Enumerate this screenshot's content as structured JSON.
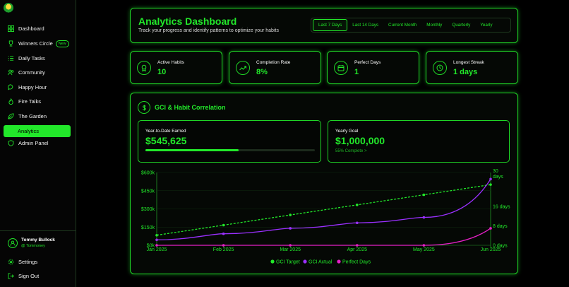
{
  "sidebar": {
    "items": [
      {
        "label": "Dashboard",
        "icon": "grid-icon"
      },
      {
        "label": "Winners Circle",
        "icon": "trophy-icon",
        "badge": "New"
      },
      {
        "label": "Daily Tasks",
        "icon": "list-icon"
      },
      {
        "label": "Community",
        "icon": "users-icon"
      },
      {
        "label": "Happy Hour",
        "icon": "chat-icon"
      },
      {
        "label": "Fire Talks",
        "icon": "flame-icon"
      },
      {
        "label": "The Garden",
        "icon": "leaf-icon"
      },
      {
        "label": "Analytics",
        "icon": "chart-icon",
        "active": true
      },
      {
        "label": "Admin Panel",
        "icon": "shield-icon"
      }
    ],
    "user": {
      "name": "Tommy Bullock",
      "handle": "@ Tommoney"
    },
    "settings_label": "Settings",
    "signout_label": "Sign Out"
  },
  "header": {
    "title": "Analytics Dashboard",
    "subtitle": "Track your progress and identify patterns to optimize your habits",
    "ranges": [
      "Last 7 Days",
      "Last 14 Days",
      "Current Month",
      "Monthly",
      "Quarterly",
      "Yearly"
    ],
    "active_range": "Last 7 Days"
  },
  "stats": [
    {
      "label": "Active Habits",
      "value": "10",
      "icon": "medal-icon"
    },
    {
      "label": "Completion Rate",
      "value": "8%",
      "icon": "trend-up-icon"
    },
    {
      "label": "Perfect Days",
      "value": "1",
      "icon": "calendar-icon"
    },
    {
      "label": "Longest Streak",
      "value": "1 days",
      "icon": "clock-icon"
    }
  ],
  "correlation": {
    "title": "GCI & Habit Correlation",
    "ytd_label": "Year-to-Date Earned",
    "ytd_value": "$545,625",
    "ytd_progress": 0.55,
    "goal_label": "Yearly Goal",
    "goal_value": "$1,000,000",
    "goal_sub": "55% Complete >"
  },
  "colors": {
    "accent": "#22e82a",
    "purple": "#9b30ff",
    "magenta": "#e520c6"
  },
  "chart_data": {
    "type": "line",
    "x": [
      "Jan 2025",
      "Feb 2025",
      "Mar 2025",
      "Apr 2025",
      "May 2025",
      "Jun 2025"
    ],
    "y_left_ticks": [
      "$0k",
      "$150k",
      "$300k",
      "$450k",
      "$600k"
    ],
    "y_left_range": [
      0,
      600000
    ],
    "y_right_ticks": [
      "0 days",
      "8 days",
      "16 days",
      "30 days"
    ],
    "y_right_range": [
      0,
      30
    ],
    "series": [
      {
        "name": "GCI Target",
        "axis": "left",
        "style": "dashed",
        "color": "#22e82a",
        "values": [
          83000,
          166000,
          250000,
          333000,
          416000,
          500000
        ]
      },
      {
        "name": "GCI Actual",
        "axis": "left",
        "style": "solid",
        "color": "#9b30ff",
        "values": [
          45000,
          95000,
          140000,
          185000,
          230000,
          545625
        ]
      },
      {
        "name": "Perfect Days",
        "axis": "right",
        "style": "solid",
        "color": "#e520c6",
        "values": [
          0,
          0,
          0,
          0,
          0,
          7
        ]
      }
    ],
    "legend_placement": "bottom"
  }
}
